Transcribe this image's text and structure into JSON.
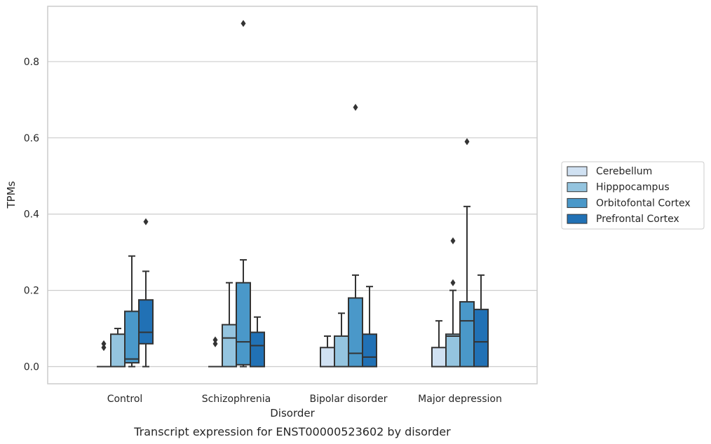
{
  "chart_data": {
    "type": "box",
    "caption": "Transcript expression for ENST00000523602 by disorder",
    "xlabel": "Disorder",
    "ylabel": "TPMs",
    "ylim": [
      -0.045,
      0.945
    ],
    "yticks": [
      0.0,
      0.2,
      0.4,
      0.6,
      0.8
    ],
    "ytick_labels": [
      "0.0",
      "0.2",
      "0.4",
      "0.6",
      "0.8"
    ],
    "grid": "horizontal",
    "legend_position": "right",
    "categories": [
      "Control",
      "Schizophrenia",
      "Bipolar disorder",
      "Major depression"
    ],
    "series": [
      {
        "name": "Cerebellum",
        "color": "#d0e1f2",
        "boxes": [
          {
            "q1": 0.0,
            "median": 0.0,
            "q3": 0.0,
            "whisker_low": 0.0,
            "whisker_high": 0.0,
            "outliers": [
              0.05,
              0.06
            ]
          },
          {
            "q1": 0.0,
            "median": 0.0,
            "q3": 0.0,
            "whisker_low": 0.0,
            "whisker_high": 0.0,
            "outliers": [
              0.06,
              0.07
            ]
          },
          {
            "q1": 0.0,
            "median": 0.0,
            "q3": 0.05,
            "whisker_low": 0.0,
            "whisker_high": 0.08,
            "outliers": []
          },
          {
            "q1": 0.0,
            "median": 0.0,
            "q3": 0.05,
            "whisker_low": 0.0,
            "whisker_high": 0.12,
            "outliers": []
          }
        ]
      },
      {
        "name": "Hipppocampus",
        "color": "#94c4df",
        "boxes": [
          {
            "q1": 0.0,
            "median": 0.0,
            "q3": 0.085,
            "whisker_low": 0.0,
            "whisker_high": 0.1,
            "outliers": []
          },
          {
            "q1": 0.0,
            "median": 0.075,
            "q3": 0.11,
            "whisker_low": 0.0,
            "whisker_high": 0.22,
            "outliers": []
          },
          {
            "q1": 0.0,
            "median": 0.0,
            "q3": 0.08,
            "whisker_low": 0.0,
            "whisker_high": 0.14,
            "outliers": []
          },
          {
            "q1": 0.0,
            "median": 0.08,
            "q3": 0.085,
            "whisker_low": 0.0,
            "whisker_high": 0.2,
            "outliers": [
              0.22,
              0.33
            ]
          }
        ]
      },
      {
        "name": "Orbitofontal Cortex",
        "color": "#4a98c9",
        "boxes": [
          {
            "q1": 0.01,
            "median": 0.02,
            "q3": 0.145,
            "whisker_low": 0.0,
            "whisker_high": 0.29,
            "outliers": []
          },
          {
            "q1": 0.005,
            "median": 0.065,
            "q3": 0.22,
            "whisker_low": 0.0,
            "whisker_high": 0.28,
            "outliers": [
              0.9
            ]
          },
          {
            "q1": 0.0,
            "median": 0.035,
            "q3": 0.18,
            "whisker_low": 0.0,
            "whisker_high": 0.24,
            "outliers": [
              0.68
            ]
          },
          {
            "q1": 0.0,
            "median": 0.12,
            "q3": 0.17,
            "whisker_low": 0.0,
            "whisker_high": 0.42,
            "outliers": [
              0.59
            ]
          }
        ]
      },
      {
        "name": "Prefrontal Cortex",
        "color": "#2171b5",
        "boxes": [
          {
            "q1": 0.06,
            "median": 0.09,
            "q3": 0.175,
            "whisker_low": 0.0,
            "whisker_high": 0.25,
            "outliers": [
              0.38
            ]
          },
          {
            "q1": 0.0,
            "median": 0.055,
            "q3": 0.09,
            "whisker_low": 0.0,
            "whisker_high": 0.13,
            "outliers": []
          },
          {
            "q1": 0.0,
            "median": 0.025,
            "q3": 0.085,
            "whisker_low": 0.0,
            "whisker_high": 0.21,
            "outliers": []
          },
          {
            "q1": 0.0,
            "median": 0.065,
            "q3": 0.15,
            "whisker_low": 0.0,
            "whisker_high": 0.24,
            "outliers": []
          }
        ]
      }
    ]
  }
}
